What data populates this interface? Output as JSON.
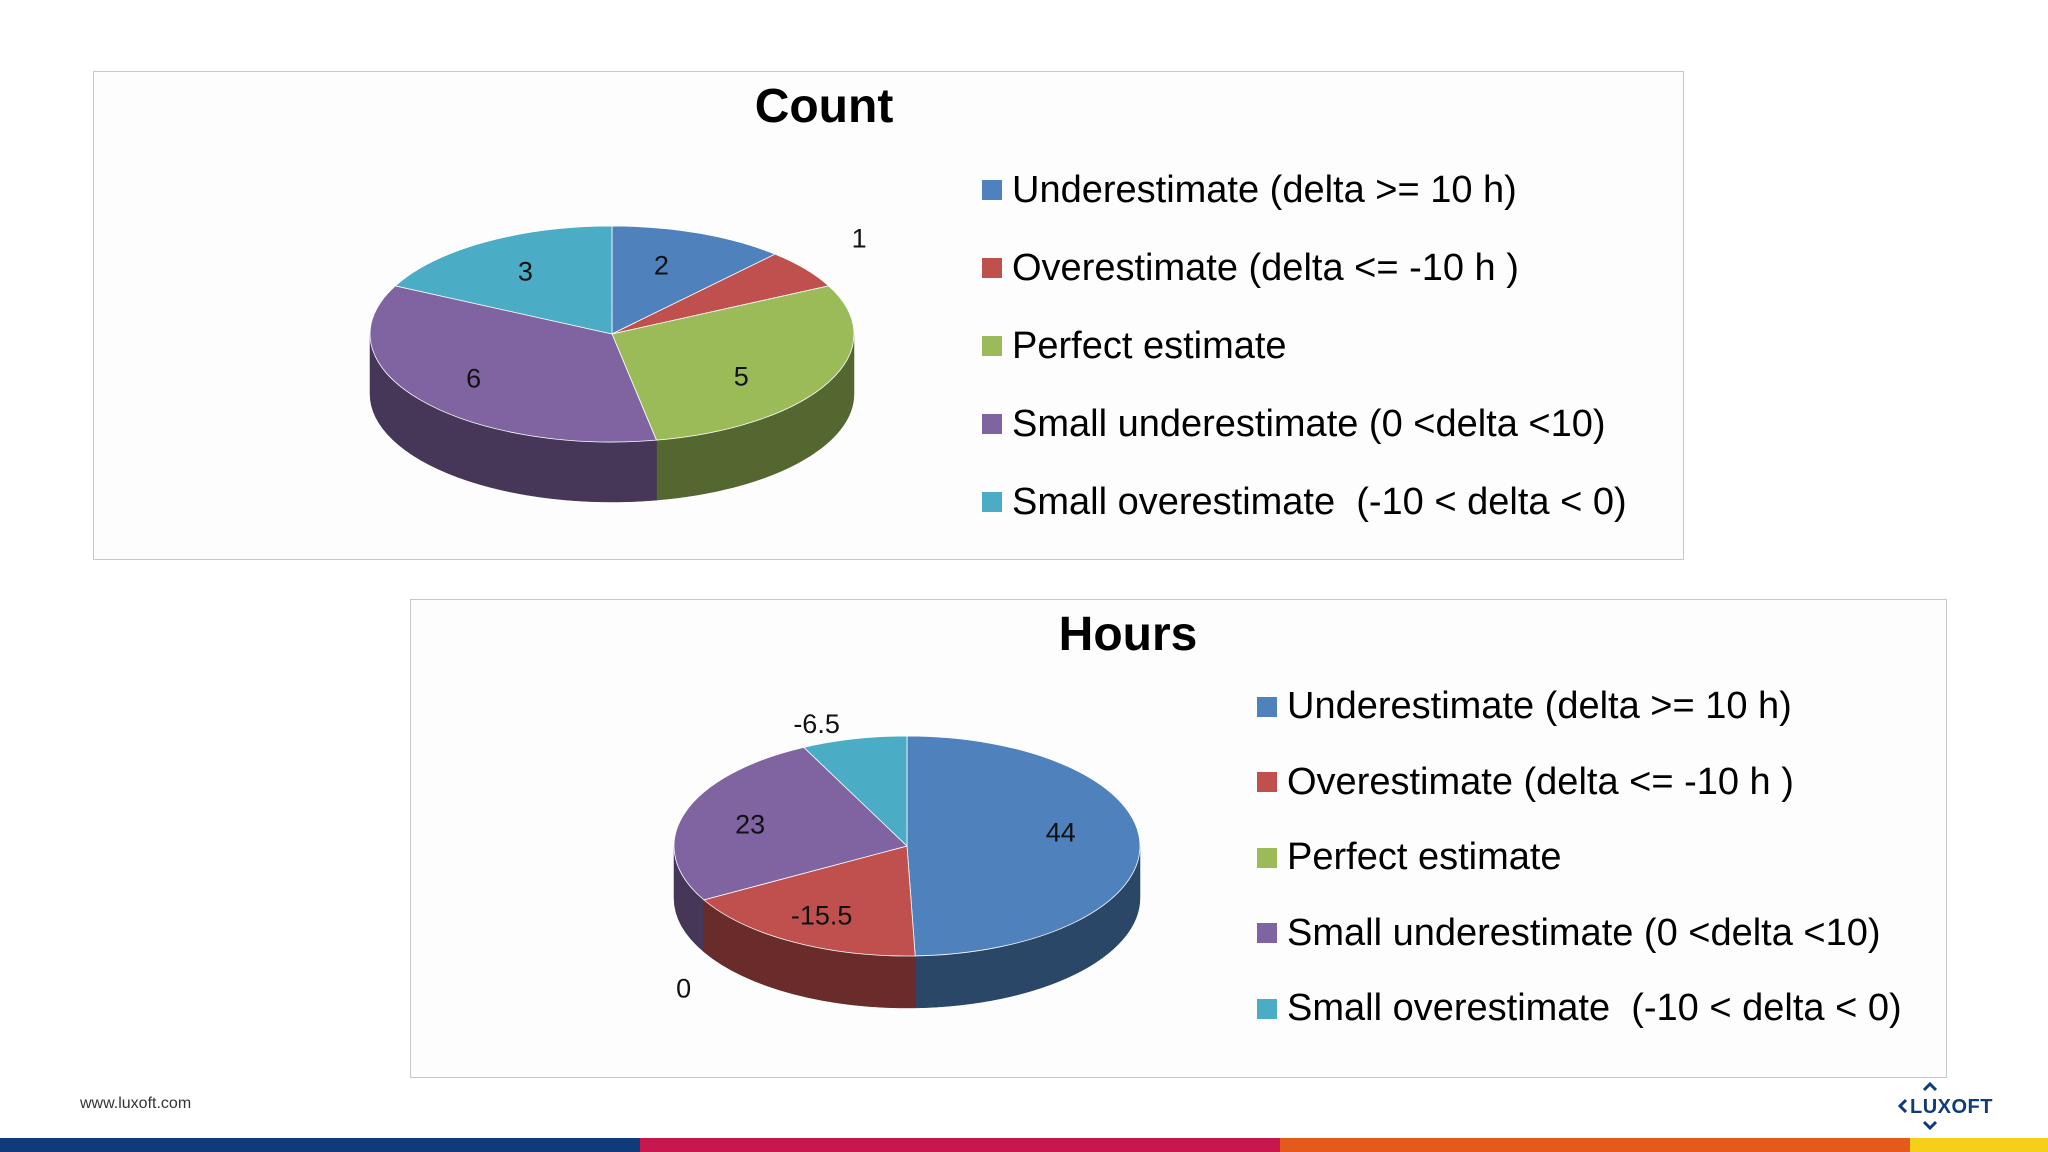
{
  "colors": {
    "underestimate": "#4f81bd",
    "overestimate": "#c0504d",
    "perfect": "#9bbb59",
    "small_under": "#8064a2",
    "small_over": "#4bacc6"
  },
  "chart_data": [
    {
      "type": "pie",
      "title": "Count",
      "categories": [
        "Underestimate (delta >= 10 h)",
        "Overestimate (delta <= -10 h )",
        "Perfect estimate",
        "Small underestimate (0 <delta <10)",
        "Small overestimate  (-10 < delta < 0)"
      ],
      "values": [
        2,
        1,
        5,
        6,
        3
      ],
      "data_labels": [
        "2",
        "1",
        "5",
        "6",
        "3"
      ],
      "legend_position": "right",
      "style": "3d"
    },
    {
      "type": "pie",
      "title": "Hours",
      "categories": [
        "Underestimate (delta >= 10 h)",
        "Overestimate (delta <= -10 h )",
        "Perfect estimate",
        "Small underestimate (0 <delta <10)",
        "Small overestimate  (-10 < delta < 0)"
      ],
      "values": [
        44,
        -15.5,
        0,
        23,
        -6.5
      ],
      "data_labels": [
        "44",
        "-15.5",
        "0",
        "23",
        "-6.5"
      ],
      "legend_position": "right",
      "style": "3d"
    }
  ],
  "footer": {
    "url": "www.luxoft.com",
    "logo_text": "LUXOFT",
    "bar_colors": [
      "#0f3c78",
      "#c8174f",
      "#e35a1a",
      "#f6cf1a"
    ]
  }
}
